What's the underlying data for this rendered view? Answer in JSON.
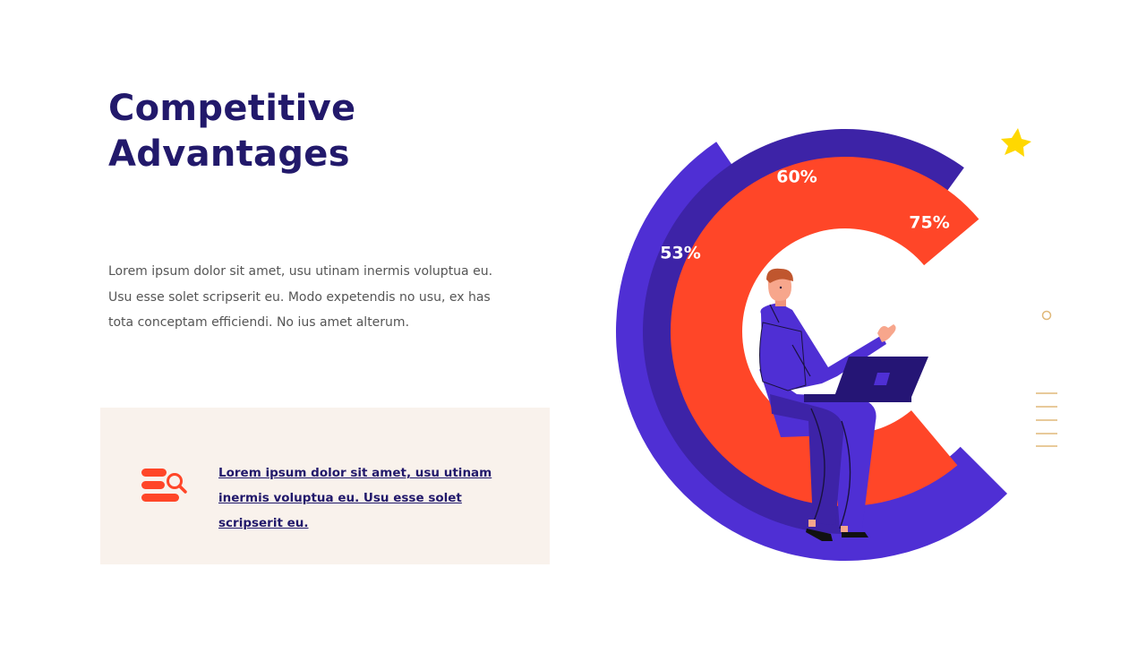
{
  "title": {
    "line1": "Competitive",
    "line2": "Advantages"
  },
  "body_text": "Lorem ipsum dolor sit amet, usu utinam inermis voluptua eu. Usu esse solet scripserit eu. Modo expetendis no usu, ex has tota conceptam efficiendi. No ius amet alterum.",
  "callout": {
    "text": "Lorem ipsum dolor sit amet, usu utinam inermis voluptua eu. Usu esse solet scripserit eu.",
    "icon": "list-search-icon"
  },
  "colors": {
    "title": "#22196b",
    "purple": "#4f2fd4",
    "dark_purple": "#3d23a7",
    "orange": "#ff4628",
    "callout_bg": "#f9f2ec",
    "star": "#ffd800",
    "accent_line": "#e0b878"
  },
  "chart_data": {
    "type": "radial bar",
    "series": [
      {
        "label": "53%",
        "value": 53,
        "color": "#4f2fd4"
      },
      {
        "label": "60%",
        "value": 60,
        "color": "#3d23a7"
      },
      {
        "label": "75%",
        "value": 75,
        "color": "#ff4628"
      }
    ]
  }
}
